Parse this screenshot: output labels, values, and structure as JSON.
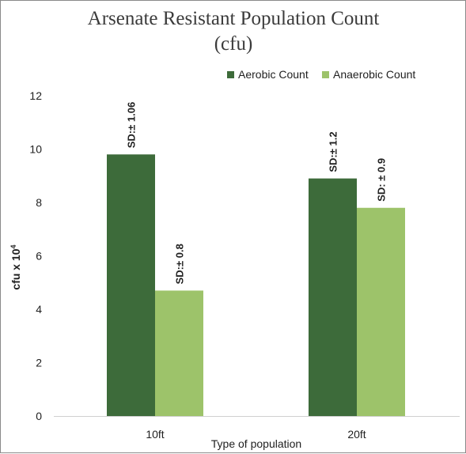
{
  "chart_data": {
    "type": "bar",
    "title_line1": "Arsenate Resistant Population Count",
    "title_line2": "(cfu)",
    "xlabel": "Type of population",
    "ylabel_main": "cfu x 10",
    "ylabel_sup": "4",
    "ylim": [
      0,
      12
    ],
    "yticks": [
      "0",
      "2",
      "4",
      "6",
      "8",
      "10",
      "12"
    ],
    "categories": [
      "10ft",
      "20ft"
    ],
    "series": [
      {
        "name": "Aerobic Count",
        "color": "#3d6b3a",
        "values": [
          9.8,
          8.9
        ],
        "labels": [
          "SD:± 1.06",
          "SD:± 1.2"
        ]
      },
      {
        "name": "Anaerobic Count",
        "color": "#9dc36a",
        "values": [
          4.7,
          7.8
        ],
        "labels": [
          "SD:± 0.8",
          "SD: ± 0.9"
        ]
      }
    ],
    "legend_position": "top-right",
    "grid": false
  }
}
